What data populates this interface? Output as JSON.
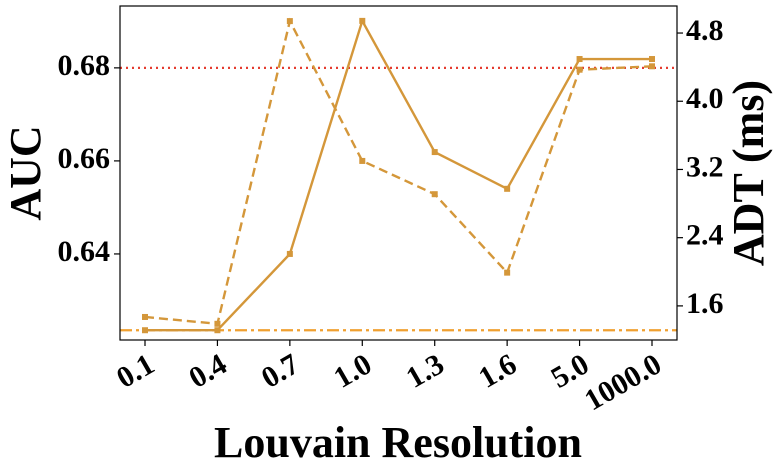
{
  "chart_data": {
    "type": "line",
    "x_label": "Louvain Resolution",
    "y_label": "AUC",
    "y2_label": "ADT (ms)",
    "categories": [
      "0.1",
      "0.4",
      "0.7",
      "1.0",
      "1.3",
      "1.6",
      "5.0",
      "1000.0"
    ],
    "series": [
      {
        "color": "#d4973a",
        "style": "solid",
        "values": [
          0.6236,
          0.6236,
          0.64,
          0.6901,
          0.6619,
          0.654,
          0.6819,
          0.6819
        ]
      },
      {
        "color": "#d4973a",
        "style": "dashed",
        "axis": "y2",
        "values": [
          1.47,
          1.39,
          4.94,
          3.3,
          2.91,
          1.99,
          4.37,
          4.41
        ]
      }
    ],
    "hlines": [
      {
        "value": 0.68,
        "color": "#e53b2f",
        "style": "dotted"
      },
      {
        "value": 0.6236,
        "color": "#f0a030",
        "style": "dashdot"
      }
    ],
    "ylim": [
      0.6215,
      0.6933
    ],
    "yticks": [
      0.64,
      0.66,
      0.68
    ],
    "y2lim": [
      1.2,
      5.117
    ],
    "y2ticks": [
      1.6,
      2.4,
      3.2,
      {
        "value": 4,
        "label": "4.0"
      },
      4.8
    ]
  }
}
